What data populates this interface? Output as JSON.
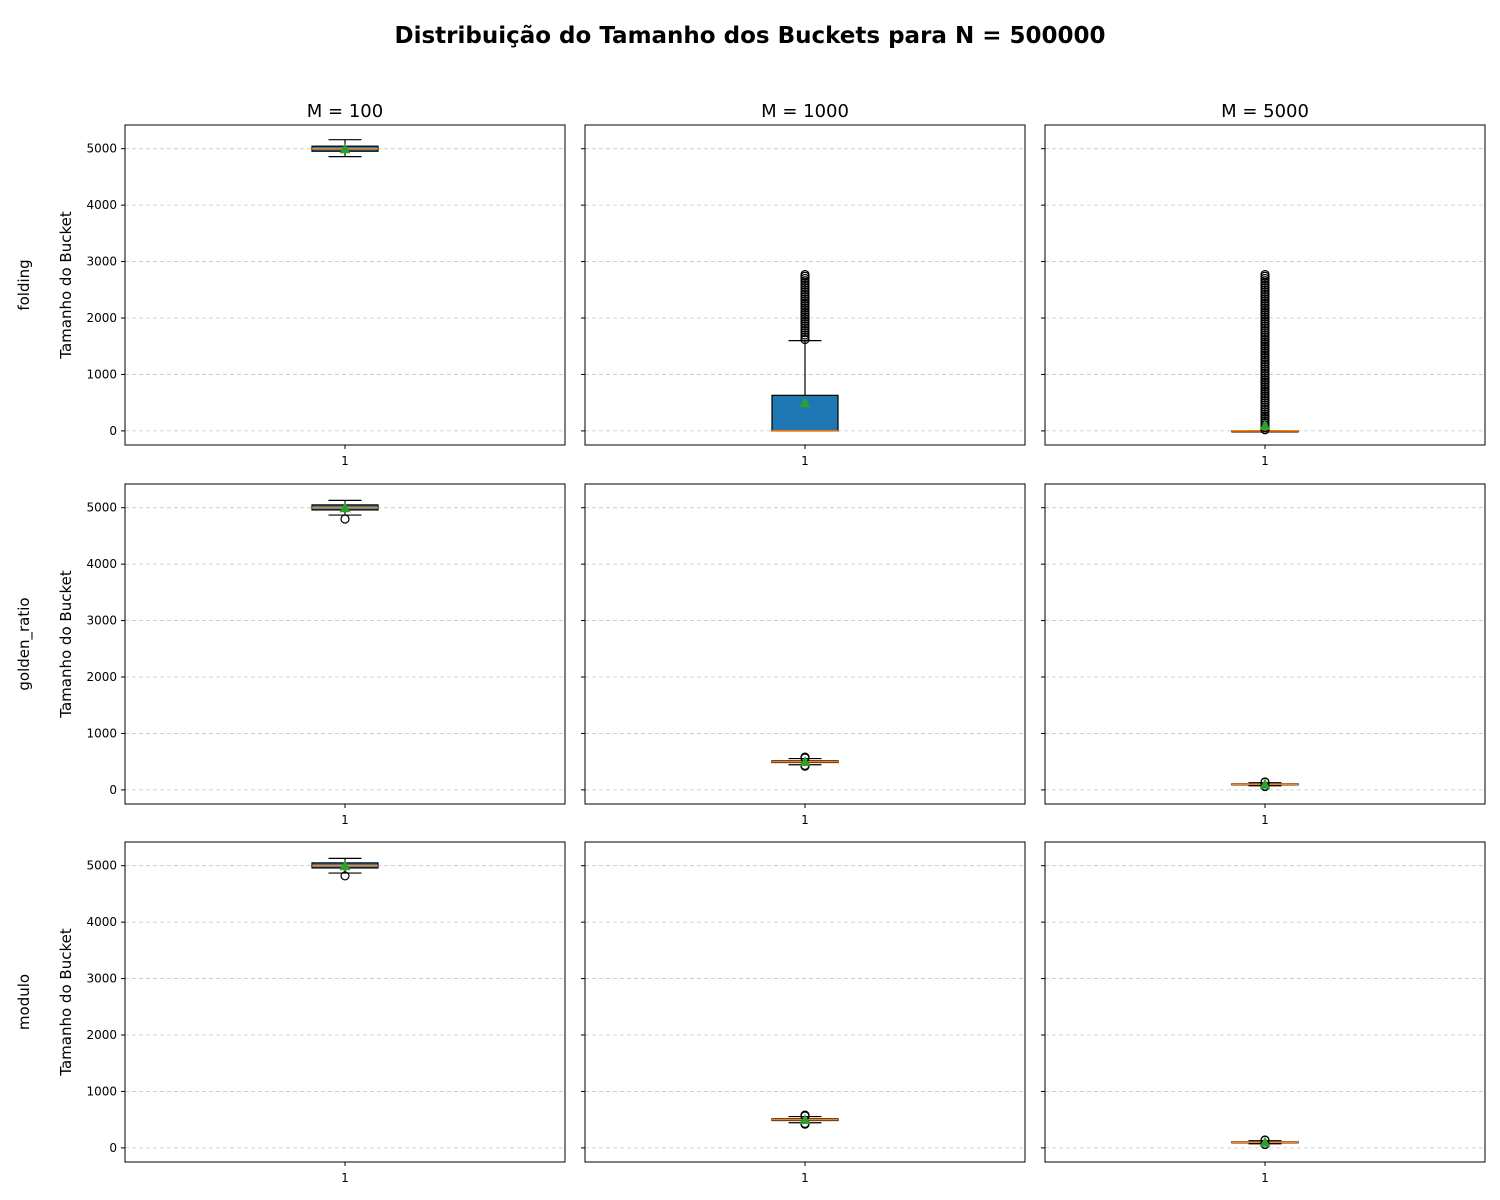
{
  "suptitle": "Distribuição do Tamanho dos Buckets para N = 500000",
  "columns": [
    "M = 100",
    "M = 1000",
    "M = 5000"
  ],
  "rows": [
    "folding",
    "golden_ratio",
    "modulo"
  ],
  "ylabel": "Tamanho do Bucket",
  "xtick": "1",
  "colors": {
    "box_fill": "#1f77b4",
    "median": "#ff7f0e",
    "mean_marker": "#2ca02c",
    "grid": "#b0b0b0"
  },
  "chart_data": {
    "type": "boxplot",
    "ylim": [
      -250,
      5420
    ],
    "yticks": [
      0,
      1000,
      2000,
      3000,
      4000,
      5000
    ],
    "grid": "y-dashed",
    "shared_y": true,
    "panels": [
      {
        "row": "folding",
        "col": "M = 100",
        "whisker_low": 4860,
        "q1": 4955,
        "median": 5000,
        "q3": 5045,
        "whisker_high": 5160,
        "mean": 5000,
        "outliers": []
      },
      {
        "row": "folding",
        "col": "M = 1000",
        "whisker_low": 0,
        "q1": 0,
        "median": 0,
        "q3": 630,
        "whisker_high": 1600,
        "mean": 500,
        "outliers": [
          1620,
          1660,
          1700,
          1740,
          1780,
          1820,
          1860,
          1900,
          1940,
          1980,
          2020,
          2060,
          2100,
          2140,
          2180,
          2220,
          2260,
          2300,
          2340,
          2380,
          2420,
          2460,
          2500,
          2540,
          2580,
          2620,
          2660,
          2700,
          2740,
          2770
        ]
      },
      {
        "row": "folding",
        "col": "M = 5000",
        "whisker_low": 0,
        "q1": 0,
        "median": 0,
        "q3": 0,
        "whisker_high": 0,
        "mean": 100,
        "outliers": [
          20,
          60,
          100,
          140,
          180,
          220,
          260,
          300,
          340,
          380,
          420,
          460,
          500,
          540,
          580,
          620,
          660,
          700,
          740,
          780,
          820,
          860,
          900,
          940,
          980,
          1020,
          1060,
          1100,
          1140,
          1180,
          1220,
          1260,
          1300,
          1340,
          1380,
          1420,
          1460,
          1500,
          1540,
          1580,
          1620,
          1660,
          1700,
          1740,
          1780,
          1820,
          1860,
          1900,
          1940,
          1980,
          2020,
          2060,
          2100,
          2140,
          2180,
          2220,
          2260,
          2300,
          2340,
          2380,
          2420,
          2460,
          2500,
          2540,
          2580,
          2620,
          2660,
          2700,
          2740,
          2770
        ]
      },
      {
        "row": "golden_ratio",
        "col": "M = 100",
        "whisker_low": 4870,
        "q1": 4960,
        "median": 5000,
        "q3": 5050,
        "whisker_high": 5130,
        "mean": 5000,
        "outliers": [
          4800
        ]
      },
      {
        "row": "golden_ratio",
        "col": "M = 1000",
        "whisker_low": 445,
        "q1": 485,
        "median": 500,
        "q3": 515,
        "whisker_high": 555,
        "mean": 500,
        "outliers": [
          420,
          435,
          565,
          580
        ]
      },
      {
        "row": "golden_ratio",
        "col": "M = 5000",
        "whisker_low": 72,
        "q1": 92,
        "median": 100,
        "q3": 108,
        "whisker_high": 128,
        "mean": 100,
        "outliers": [
          60,
          66,
          134,
          140
        ]
      },
      {
        "row": "modulo",
        "col": "M = 100",
        "whisker_low": 4870,
        "q1": 4960,
        "median": 5000,
        "q3": 5050,
        "whisker_high": 5130,
        "mean": 5000,
        "outliers": [
          4820
        ]
      },
      {
        "row": "modulo",
        "col": "M = 1000",
        "whisker_low": 445,
        "q1": 485,
        "median": 500,
        "q3": 515,
        "whisker_high": 555,
        "mean": 500,
        "outliers": [
          420,
          435,
          565,
          580
        ]
      },
      {
        "row": "modulo",
        "col": "M = 5000",
        "whisker_low": 72,
        "q1": 92,
        "median": 100,
        "q3": 108,
        "whisker_high": 128,
        "mean": 100,
        "outliers": [
          60,
          66,
          134,
          140
        ]
      }
    ]
  }
}
